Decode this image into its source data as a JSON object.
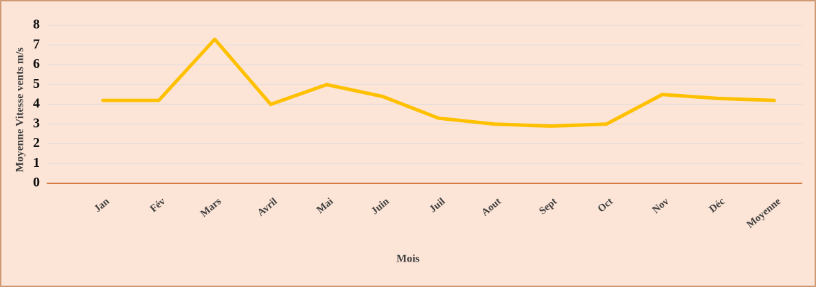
{
  "chart_data": {
    "type": "line",
    "x_label": "Mois",
    "y_label": "Moyenne Vitesse vents m/s",
    "categories": [
      "Jan",
      "Fév",
      "Mars",
      "Avril",
      "Mai",
      "Juin",
      "Juil",
      "Aout",
      "Sept",
      "Oct",
      "Nov",
      "Déc",
      "Moyenne"
    ],
    "values": [
      4.2,
      4.2,
      7.3,
      4.0,
      5.0,
      4.4,
      3.3,
      3.0,
      2.9,
      3.0,
      4.5,
      4.3,
      4.2
    ],
    "color": "#ffc000",
    "ylim": [
      0,
      8
    ],
    "yticks": [
      0,
      1,
      2,
      3,
      4,
      5,
      6,
      7,
      8
    ],
    "grid": true
  }
}
